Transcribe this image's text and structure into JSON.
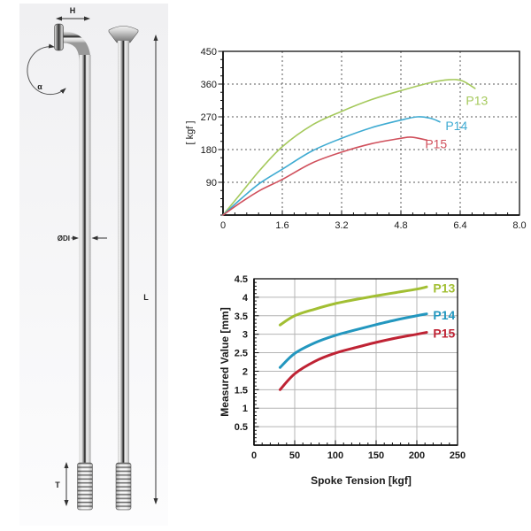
{
  "page": {
    "background": "#ffffff"
  },
  "diagram": {
    "description": "bicycle spoke side view with J-bend and straight-pull spoke, dimension callouts",
    "labels": {
      "head_width": "H",
      "bend_angle": "α",
      "diameter": "ØDI",
      "length": "L",
      "thread_length": "T"
    }
  },
  "chart_data": [
    {
      "type": "line",
      "title": "",
      "xlabel": "",
      "ylabel": "[ kgf ]",
      "xlim": [
        0,
        8
      ],
      "ylim": [
        0,
        450
      ],
      "xticks": [
        0,
        1.6,
        3.2,
        4.8,
        6.4,
        8
      ],
      "xtick_labels": [
        "0",
        "1.6",
        "3.2",
        "4.8",
        "6.4",
        "8.0"
      ],
      "yticks": [
        90,
        180,
        270,
        360,
        450
      ],
      "ytick_labels": [
        "90",
        "180",
        "270",
        "360",
        "450"
      ],
      "grid": "dashed",
      "legend_position": "inline-labels",
      "series": [
        {
          "name": "P13",
          "color": "#a5c95c",
          "label_at": [
            6.85,
            315
          ],
          "points": [
            [
              0,
              0
            ],
            [
              0.5,
              62
            ],
            [
              1,
              124
            ],
            [
              1.6,
              188
            ],
            [
              2.4,
              247
            ],
            [
              3.2,
              285
            ],
            [
              4,
              317
            ],
            [
              4.8,
              342
            ],
            [
              5.6,
              364
            ],
            [
              6.1,
              372
            ],
            [
              6.45,
              369
            ],
            [
              6.8,
              348
            ]
          ]
        },
        {
          "name": "P14",
          "color": "#3fabd2",
          "label_at": [
            6.3,
            245
          ],
          "points": [
            [
              0,
              0
            ],
            [
              0.5,
              46
            ],
            [
              1,
              88
            ],
            [
              1.6,
              126
            ],
            [
              2.4,
              176
            ],
            [
              3.2,
              211
            ],
            [
              4,
              240
            ],
            [
              4.8,
              261
            ],
            [
              5.25,
              270
            ],
            [
              5.6,
              266
            ],
            [
              5.85,
              256
            ]
          ]
        },
        {
          "name": "P15",
          "color": "#d0505c",
          "label_at": [
            5.75,
            195
          ],
          "points": [
            [
              0,
              0
            ],
            [
              0.5,
              36
            ],
            [
              1,
              68
            ],
            [
              1.6,
              98
            ],
            [
              2.4,
              143
            ],
            [
              3.2,
              173
            ],
            [
              4,
              196
            ],
            [
              4.8,
              211
            ],
            [
              5.1,
              214
            ],
            [
              5.5,
              206
            ]
          ]
        }
      ]
    },
    {
      "type": "line",
      "title": "",
      "xlabel": "Spoke Tension [kgf]",
      "ylabel": "Measured Value [mm]",
      "xlim": [
        0,
        250
      ],
      "ylim": [
        0,
        4.5
      ],
      "xticks": [
        0,
        50,
        100,
        150,
        200,
        250
      ],
      "xtick_labels": [
        "0",
        "50",
        "100",
        "150",
        "200",
        "250"
      ],
      "yticks": [
        0.5,
        1,
        1.5,
        2,
        2.5,
        3,
        3.5,
        4,
        4.5
      ],
      "ytick_labels": [
        "0.5",
        "1",
        "1.5",
        "2",
        "2.5",
        "3",
        "3.5",
        "4",
        "4.5"
      ],
      "grid": "solid",
      "legend_position": "inline-labels",
      "series": [
        {
          "name": "P13",
          "color": "#a2bf33",
          "label_at": [
            220,
            4.25
          ],
          "points": [
            [
              32,
              3.25
            ],
            [
              50,
              3.5
            ],
            [
              75,
              3.68
            ],
            [
              100,
              3.83
            ],
            [
              125,
              3.94
            ],
            [
              150,
              4.04
            ],
            [
              175,
              4.13
            ],
            [
              200,
              4.22
            ],
            [
              212,
              4.28
            ]
          ]
        },
        {
          "name": "P14",
          "color": "#2397bf",
          "label_at": [
            220,
            3.52
          ],
          "points": [
            [
              32,
              2.1
            ],
            [
              50,
              2.48
            ],
            [
              75,
              2.77
            ],
            [
              100,
              2.97
            ],
            [
              125,
              3.12
            ],
            [
              150,
              3.26
            ],
            [
              175,
              3.39
            ],
            [
              200,
              3.5
            ],
            [
              212,
              3.55
            ]
          ]
        },
        {
          "name": "P15",
          "color": "#bf2334",
          "label_at": [
            220,
            3.02
          ],
          "points": [
            [
              32,
              1.5
            ],
            [
              50,
              1.93
            ],
            [
              75,
              2.27
            ],
            [
              100,
              2.49
            ],
            [
              125,
              2.64
            ],
            [
              150,
              2.78
            ],
            [
              175,
              2.9
            ],
            [
              200,
              3
            ],
            [
              212,
              3.05
            ]
          ]
        }
      ]
    }
  ]
}
